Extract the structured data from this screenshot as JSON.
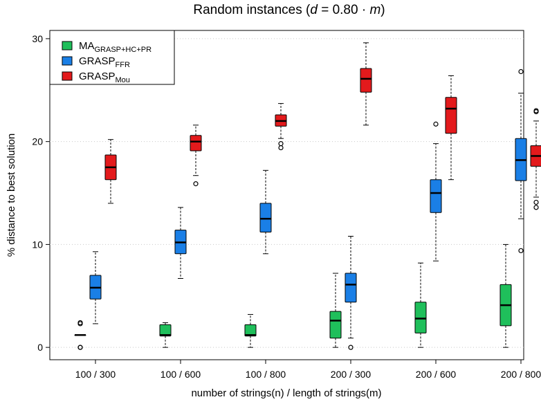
{
  "chart_data": {
    "type": "box",
    "title_parts": {
      "prefix": "Random instances (",
      "var": "d",
      "mid": " = 0.80 · ",
      "var2": "m",
      "suffix": ")"
    },
    "xlabel": "number of strings(n) / length of strings(m)",
    "ylabel": "% distance to best solution",
    "ylim": [
      -1.2,
      30.8
    ],
    "yticks": [
      0,
      10,
      20,
      30
    ],
    "grid": true,
    "legend_position": "top-left",
    "categories": [
      "100 / 300",
      "100 / 600",
      "100 / 800",
      "200 / 300",
      "200 / 600",
      "200 / 800"
    ],
    "series": [
      {
        "name_base": "MA",
        "name_sub": "GRASP+HC+PR",
        "color": "#1fbf5b",
        "boxes": [
          {
            "low": 1.2,
            "q1": 1.2,
            "median": 1.2,
            "q3": 1.2,
            "high": 1.2,
            "outliers": [
              0,
              0,
              2.3,
              2.4
            ]
          },
          {
            "low": 0,
            "q1": 1.1,
            "median": 1.2,
            "q3": 2.2,
            "high": 2.4,
            "outliers": []
          },
          {
            "low": 0,
            "q1": 1.1,
            "median": 1.2,
            "q3": 2.2,
            "high": 3.2,
            "outliers": []
          },
          {
            "low": 0,
            "q1": 0.9,
            "median": 2.6,
            "q3": 3.5,
            "high": 7.2,
            "outliers": []
          },
          {
            "low": 0,
            "q1": 1.4,
            "median": 2.8,
            "q3": 4.4,
            "high": 8.2,
            "outliers": []
          },
          {
            "low": 0,
            "q1": 2.1,
            "median": 4.1,
            "q3": 6.1,
            "high": 10.0,
            "outliers": []
          }
        ]
      },
      {
        "name_base": "GRASP",
        "name_sub": "FFR",
        "color": "#1a7fe6",
        "boxes": [
          {
            "low": 2.3,
            "q1": 4.7,
            "median": 5.8,
            "q3": 7.0,
            "high": 9.3,
            "outliers": []
          },
          {
            "low": 6.7,
            "q1": 9.1,
            "median": 10.2,
            "q3": 11.4,
            "high": 13.6,
            "outliers": []
          },
          {
            "low": 9.1,
            "q1": 11.2,
            "median": 12.5,
            "q3": 14.0,
            "high": 17.2,
            "outliers": []
          },
          {
            "low": 0.9,
            "q1": 4.4,
            "median": 6.1,
            "q3": 7.2,
            "high": 10.8,
            "outliers": [
              0
            ]
          },
          {
            "low": 8.4,
            "q1": 13.1,
            "median": 15.0,
            "q3": 16.3,
            "high": 19.8,
            "outliers": [
              21.7
            ]
          },
          {
            "low": 12.5,
            "q1": 16.2,
            "median": 18.2,
            "q3": 20.3,
            "high": 24.7,
            "outliers": [
              9.4,
              26.8
            ]
          }
        ]
      },
      {
        "name_base": "GRASP",
        "name_sub": "Mou",
        "color": "#e31a1c",
        "boxes": [
          {
            "low": 14.0,
            "q1": 16.3,
            "median": 17.5,
            "q3": 18.7,
            "high": 20.2,
            "outliers": []
          },
          {
            "low": 16.7,
            "q1": 19.1,
            "median": 20.0,
            "q3": 20.6,
            "high": 21.6,
            "outliers": [
              15.9
            ]
          },
          {
            "low": 20.3,
            "q1": 21.5,
            "median": 22.0,
            "q3": 22.6,
            "high": 23.7,
            "outliers": [
              19.4,
              19.8
            ]
          },
          {
            "low": 21.6,
            "q1": 24.8,
            "median": 26.1,
            "q3": 27.1,
            "high": 29.6,
            "outliers": []
          },
          {
            "low": 16.3,
            "q1": 20.8,
            "median": 23.2,
            "q3": 24.3,
            "high": 26.4,
            "outliers": []
          },
          {
            "low": 14.6,
            "q1": 17.6,
            "median": 18.6,
            "q3": 19.6,
            "high": 22.0,
            "outliers": [
              13.6,
              14.1,
              22.9,
              23.0
            ]
          }
        ]
      }
    ]
  }
}
